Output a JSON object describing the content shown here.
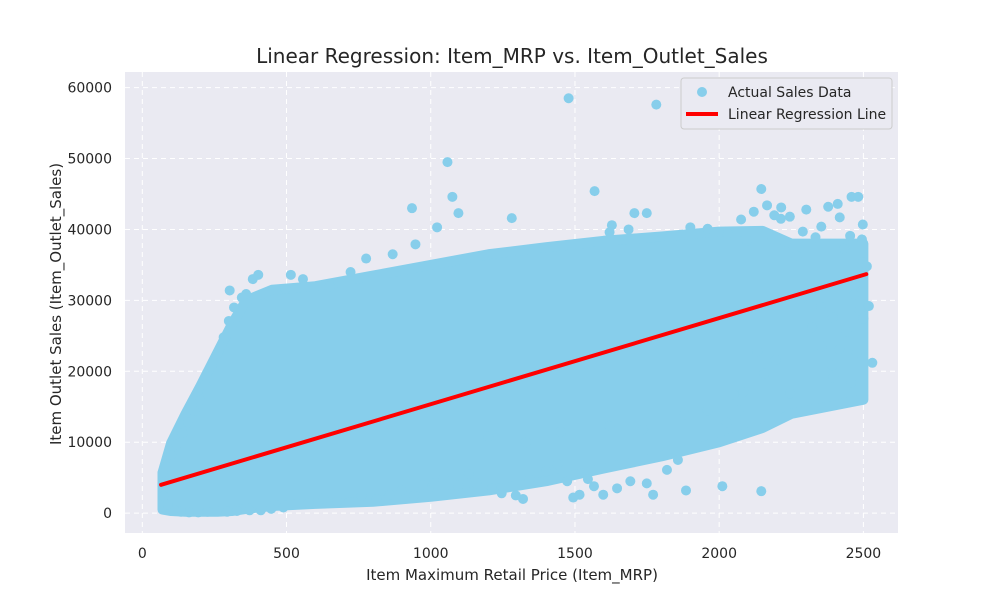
{
  "chart_data": {
    "type": "scatter",
    "title": "Linear Regression: Item_MRP vs. Item_Outlet_Sales",
    "xlabel": "Item Maximum Retail Price (Item_MRP)",
    "ylabel": "Item Outlet Sales (Item_Outlet_Sales)",
    "xlim": [
      -60,
      2620
    ],
    "ylim": [
      -2800,
      62200
    ],
    "xticks": [
      0,
      500,
      1000,
      1500,
      2000,
      2500
    ],
    "yticks": [
      0,
      10000,
      20000,
      30000,
      40000,
      50000,
      60000
    ],
    "xtick_labels": [
      "0",
      "500",
      "1000",
      "1500",
      "2000",
      "2500"
    ],
    "ytick_labels": [
      "0",
      "10000",
      "20000",
      "30000",
      "40000",
      "50000",
      "60000"
    ],
    "grid": true,
    "legend_position": "top-right",
    "colors": {
      "background": "#eaeaf2",
      "grid": "#ffffff",
      "scatter": "#87ceeb",
      "regression": "#ff0000"
    },
    "series": [
      {
        "name": "Actual Sales Data",
        "kind": "scatter",
        "points": [
          [
            1478,
            58500
          ],
          [
            1782,
            57600
          ],
          [
            1058,
            49500
          ],
          [
            1075,
            44600
          ],
          [
            1568,
            45400
          ],
          [
            935,
            43000
          ],
          [
            1096,
            42300
          ],
          [
            1022,
            40300
          ],
          [
            1281,
            41600
          ],
          [
            2146,
            45700
          ],
          [
            2459,
            44600
          ],
          [
            2482,
            44600
          ],
          [
            2498,
            40700
          ],
          [
            2302,
            42800
          ],
          [
            2378,
            43200
          ],
          [
            2411,
            43600
          ],
          [
            2214,
            41500
          ],
          [
            1749,
            42300
          ],
          [
            1706,
            42300
          ],
          [
            1628,
            40600
          ],
          [
            947,
            37900
          ],
          [
            868,
            36500
          ],
          [
            776,
            35900
          ],
          [
            402,
            33600
          ],
          [
            383,
            33000
          ],
          [
            557,
            33000
          ],
          [
            496,
            31600
          ],
          [
            515,
            33600
          ],
          [
            303,
            31400
          ],
          [
            360,
            30900
          ],
          [
            650,
            32000
          ],
          [
            722,
            34000
          ],
          [
            1900,
            40300
          ],
          [
            2096,
            38400
          ],
          [
            2268,
            36300
          ],
          [
            2418,
            41700
          ],
          [
            2498,
            35400
          ],
          [
            2512,
            34800
          ],
          [
            2470,
            32200
          ],
          [
            2519,
            29200
          ],
          [
            2531,
            21200
          ],
          [
            2477,
            22600
          ],
          [
            2458,
            18400
          ],
          [
            2396,
            19100
          ],
          [
            2356,
            23500
          ],
          [
            2322,
            26200
          ],
          [
            2288,
            30300
          ],
          [
            2246,
            16900
          ],
          [
            2196,
            21600
          ],
          [
            2156,
            19700
          ],
          [
            2132,
            22800
          ],
          [
            2084,
            17100
          ],
          [
            2069,
            14500
          ],
          [
            2026,
            12800
          ],
          [
            2011,
            3800
          ],
          [
            2146,
            3100
          ],
          [
            1885,
            3200
          ],
          [
            1771,
            2600
          ],
          [
            1857,
            7500
          ],
          [
            1819,
            6100
          ],
          [
            1749,
            4200
          ],
          [
            1692,
            4500
          ],
          [
            1646,
            3500
          ],
          [
            1598,
            2600
          ],
          [
            1566,
            3800
          ],
          [
            1545,
            4800
          ],
          [
            1516,
            2600
          ],
          [
            1494,
            2200
          ],
          [
            1473,
            4500
          ],
          [
            1439,
            6900
          ],
          [
            1400,
            5900
          ],
          [
            1342,
            4800
          ],
          [
            1320,
            2000
          ],
          [
            1295,
            2500
          ],
          [
            1246,
            2800
          ],
          [
            1212,
            3500
          ],
          [
            1159,
            4200
          ],
          [
            1132,
            5500
          ],
          [
            1096,
            3900
          ],
          [
            1045,
            5000
          ],
          [
            1011,
            4200
          ],
          [
            972,
            4000
          ],
          [
            942,
            2500
          ],
          [
            899,
            3200
          ],
          [
            858,
            2600
          ],
          [
            812,
            2000
          ],
          [
            760,
            2400
          ],
          [
            716,
            1500
          ],
          [
            675,
            1700
          ],
          [
            629,
            2100
          ],
          [
            576,
            1400
          ],
          [
            531,
            1200
          ],
          [
            489,
            800
          ],
          [
            447,
            600
          ],
          [
            411,
            400
          ],
          [
            372,
            400
          ],
          [
            328,
            300
          ],
          [
            294,
            200
          ],
          [
            258,
            300
          ],
          [
            226,
            200
          ],
          [
            194,
            100
          ],
          [
            162,
            100
          ],
          [
            134,
            200
          ],
          [
            108,
            500
          ],
          [
            88,
            1200
          ],
          [
            74,
            2400
          ],
          [
            70,
            3900
          ],
          [
            70,
            5700
          ],
          [
            82,
            6600
          ],
          [
            100,
            8200
          ],
          [
            120,
            9700
          ],
          [
            140,
            11300
          ],
          [
            158,
            12800
          ],
          [
            180,
            14400
          ],
          [
            200,
            15900
          ],
          [
            218,
            18100
          ],
          [
            240,
            20600
          ],
          [
            260,
            22500
          ],
          [
            282,
            24800
          ],
          [
            300,
            27100
          ],
          [
            318,
            29000
          ],
          [
            345,
            30400
          ],
          [
            1200,
            10800
          ],
          [
            1330,
            10000
          ],
          [
            1450,
            11500
          ],
          [
            1620,
            12300
          ],
          [
            1736,
            11800
          ],
          [
            1880,
            13900
          ],
          [
            1960,
            14500
          ],
          [
            2050,
            16700
          ],
          [
            1620,
            39600
          ],
          [
            1686,
            40000
          ],
          [
            1802,
            39000
          ],
          [
            1960,
            40100
          ],
          [
            2030,
            39400
          ],
          [
            2076,
            41400
          ],
          [
            2120,
            42500
          ],
          [
            2166,
            43400
          ],
          [
            2191,
            42000
          ],
          [
            2215,
            43100
          ],
          [
            2245,
            41800
          ],
          [
            2290,
            39700
          ],
          [
            2334,
            38900
          ],
          [
            2354,
            40400
          ],
          [
            2433,
            37300
          ],
          [
            2454,
            39100
          ],
          [
            2495,
            38600
          ],
          [
            2468,
            30800
          ],
          [
            2487,
            28600
          ],
          [
            2500,
            27400
          ],
          [
            2441,
            25600
          ],
          [
            2394,
            27600
          ],
          [
            2353,
            29100
          ],
          [
            2417,
            23100
          ],
          [
            2392,
            20800
          ]
        ]
      },
      {
        "name": "Linear Regression Line",
        "kind": "line",
        "points": [
          [
            65,
            4000
          ],
          [
            2510,
            33700
          ]
        ]
      }
    ]
  }
}
